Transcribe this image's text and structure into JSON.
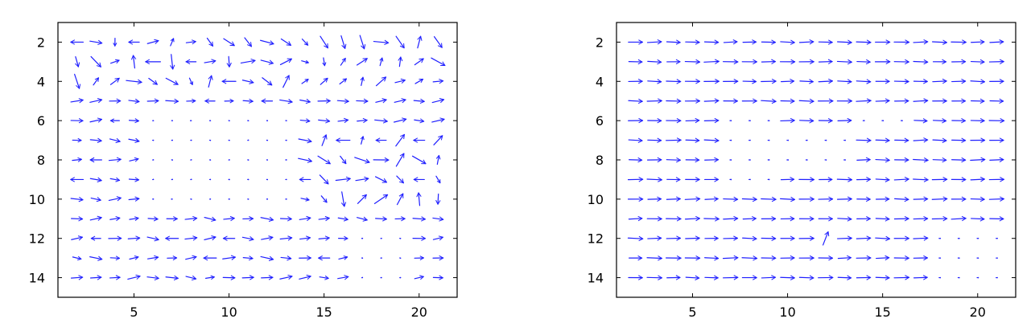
{
  "chart_data": [
    {
      "type": "quiver",
      "name": "left-quiver",
      "xlim": [
        1,
        22
      ],
      "ylim": [
        15,
        1
      ],
      "y_reversed": true,
      "xticks": [
        5,
        10,
        15,
        20
      ],
      "yticks": [
        2,
        4,
        6,
        8,
        10,
        12,
        14
      ],
      "grid_x": [
        2,
        3,
        4,
        5,
        6,
        7,
        8,
        9,
        10,
        11,
        12,
        13,
        14,
        15,
        16,
        17,
        18,
        19,
        20,
        21
      ],
      "grid_y": [
        2,
        3,
        4,
        5,
        6,
        7,
        8,
        9,
        10,
        11,
        12,
        13,
        14
      ],
      "arrow_color": "#1f1fff",
      "field": "noisy",
      "background_flow": "rightward, mixed directions"
    },
    {
      "type": "quiver",
      "name": "right-quiver",
      "xlim": [
        1,
        22
      ],
      "ylim": [
        15,
        1
      ],
      "y_reversed": true,
      "xticks": [
        5,
        10,
        15,
        20
      ],
      "yticks": [
        2,
        4,
        6,
        8,
        10,
        12,
        14
      ],
      "grid_x": [
        2,
        3,
        4,
        5,
        6,
        7,
        8,
        9,
        10,
        11,
        12,
        13,
        14,
        15,
        16,
        17,
        18,
        19,
        20,
        21
      ],
      "grid_y": [
        2,
        3,
        4,
        5,
        6,
        7,
        8,
        9,
        10,
        11,
        12,
        13,
        14
      ],
      "arrow_color": "#1f1fff",
      "field": "smooth",
      "background_flow": "uniform rightward"
    }
  ]
}
